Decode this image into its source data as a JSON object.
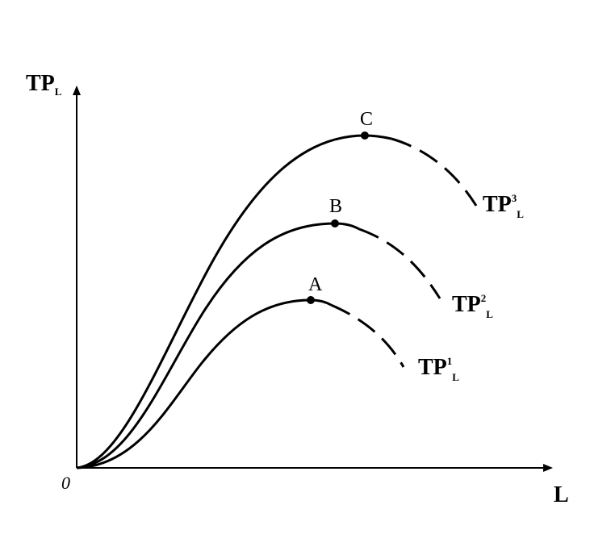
{
  "axes": {
    "y_label": {
      "main": "TP",
      "sub": "L"
    },
    "x_label": "L",
    "origin": "0"
  },
  "curves": [
    {
      "point": "A",
      "label": {
        "main": "TP",
        "sup": "1",
        "sub": "L"
      }
    },
    {
      "point": "B",
      "label": {
        "main": "TP",
        "sup": "2",
        "sub": "L"
      }
    },
    {
      "point": "C",
      "label": {
        "main": "TP",
        "sup": "3",
        "sub": "L"
      }
    }
  ]
}
